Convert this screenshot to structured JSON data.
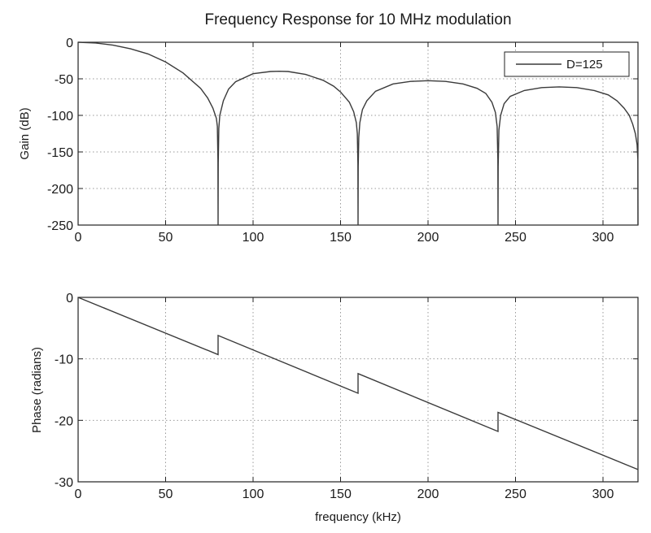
{
  "chart_data": [
    {
      "type": "line",
      "title": "Frequency Response for 10 MHz modulation",
      "xlabel": "",
      "ylabel": "Gain (dB)",
      "xlim": [
        0,
        320
      ],
      "ylim": [
        -250,
        0
      ],
      "xticks": [
        "0",
        "50",
        "100",
        "150",
        "200",
        "250",
        "300"
      ],
      "yticks": [
        "0",
        "-50",
        "-100",
        "-150",
        "-200",
        "-250"
      ],
      "grid": true,
      "legend": {
        "position": "top-right",
        "entries": [
          "D=125"
        ]
      },
      "series": [
        {
          "name": "D=125",
          "color": "#3a3a3a",
          "x": [
            0,
            10,
            20,
            30,
            40,
            50,
            60,
            70,
            74,
            77,
            79,
            79.6,
            79.9,
            80,
            80.1,
            80.4,
            81,
            83,
            86,
            90,
            100,
            110,
            115,
            120,
            130,
            140,
            146,
            150,
            155,
            157.5,
            159,
            159.6,
            159.9,
            160,
            160.1,
            160.4,
            161,
            162.5,
            165,
            170,
            180,
            190,
            200,
            210,
            220,
            228,
            233,
            236.5,
            238.5,
            239.5,
            239.9,
            240,
            240.1,
            240.5,
            241.5,
            243.5,
            247,
            255,
            265,
            275,
            285,
            295,
            303,
            308,
            312,
            315,
            317,
            318.5,
            319.5,
            319.9,
            320
          ],
          "values": [
            0,
            -1,
            -4,
            -9,
            -16,
            -27,
            -42,
            -63,
            -76,
            -90,
            -104,
            -115,
            -160,
            -250,
            -165,
            -118,
            -100,
            -80,
            -64,
            -54,
            -43,
            -40,
            -39.7,
            -40,
            -44,
            -52,
            -60,
            -68,
            -82,
            -95,
            -110,
            -125,
            -165,
            -250,
            -170,
            -130,
            -110,
            -92,
            -80,
            -67,
            -57,
            -53.5,
            -52.5,
            -53.5,
            -57,
            -63,
            -70,
            -82,
            -96,
            -115,
            -160,
            -250,
            -170,
            -120,
            -100,
            -84,
            -74,
            -66,
            -62,
            -61,
            -62,
            -66,
            -72,
            -80,
            -90,
            -100,
            -112,
            -125,
            -140,
            -160,
            -250
          ]
        }
      ]
    },
    {
      "type": "line",
      "title": "",
      "xlabel": "frequency (kHz)",
      "ylabel": "Phase (radians)",
      "xlim": [
        0,
        320
      ],
      "ylim": [
        -30,
        0
      ],
      "xticks": [
        "0",
        "50",
        "100",
        "150",
        "200",
        "250",
        "300"
      ],
      "yticks": [
        "0",
        "-10",
        "-20",
        "-30"
      ],
      "grid": true,
      "series": [
        {
          "color": "#3a3a3a",
          "x": [
            0,
            80,
            80,
            160,
            160,
            240,
            240,
            320
          ],
          "values": [
            0,
            -9.3,
            -6.2,
            -15.6,
            -12.4,
            -21.8,
            -18.7,
            -28.0
          ]
        }
      ]
    }
  ]
}
